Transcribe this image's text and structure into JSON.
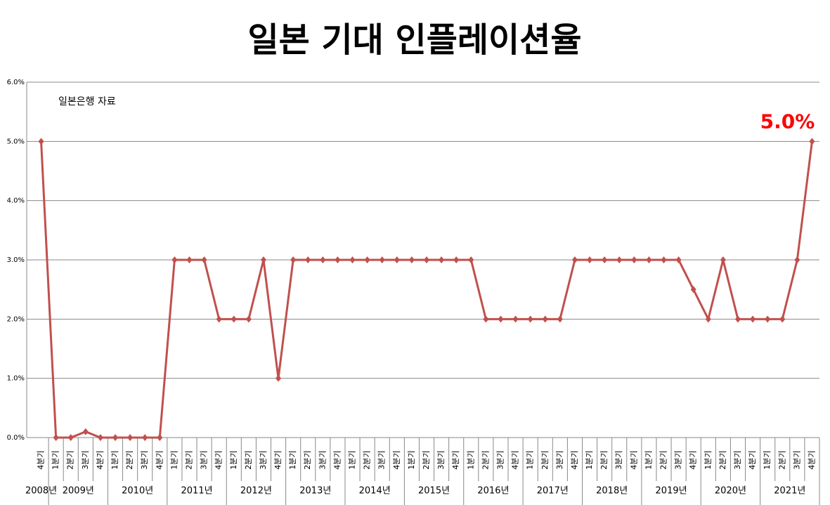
{
  "chart_data": {
    "type": "line",
    "title": "일본 기대 인플레이션율",
    "annotation": "일본은행 자료",
    "years": [
      "2008년",
      "2009년",
      "2010년",
      "2011년",
      "2012년",
      "2013년",
      "2014년",
      "2015년",
      "2016년",
      "2017년",
      "2018년",
      "2019년",
      "2020년",
      "2021년"
    ],
    "quarters": [
      [
        "4분기"
      ],
      [
        "1분기",
        "2분기",
        "3분기",
        "4분기"
      ],
      [
        "1분기",
        "2분기",
        "3분기",
        "4분기"
      ],
      [
        "1분기",
        "2분기",
        "3분기",
        "4분기"
      ],
      [
        "1분기",
        "2분기",
        "3분기",
        "4분기"
      ],
      [
        "1분기",
        "2분기",
        "3분기",
        "4분기"
      ],
      [
        "1분기",
        "2분기",
        "3분기",
        "4분기"
      ],
      [
        "1분기",
        "2분기",
        "3분기",
        "4분기"
      ],
      [
        "1분기",
        "2분기",
        "3분기",
        "4분기"
      ],
      [
        "1분기",
        "2분기",
        "3분기",
        "4분기"
      ],
      [
        "1분기",
        "2분기",
        "3분기",
        "4분기"
      ],
      [
        "1분기",
        "2분기",
        "3분기",
        "4분기"
      ],
      [
        "1분기",
        "2분기",
        "3분기",
        "4분기"
      ],
      [
        "1분기",
        "2분기",
        "3분기",
        "4분기"
      ]
    ],
    "values": [
      5,
      0,
      0,
      0.1,
      0,
      0,
      0,
      0,
      0,
      3,
      3,
      3,
      2,
      2,
      2,
      3,
      1,
      3,
      3,
      3,
      3,
      3,
      3,
      3,
      3,
      3,
      3,
      3,
      3,
      3,
      2,
      2,
      2,
      2,
      2,
      2,
      3,
      3,
      3,
      3,
      3,
      3,
      3,
      3,
      2.5,
      2,
      3,
      2,
      2,
      2,
      2,
      3,
      5
    ],
    "value_labels": [
      null,
      null,
      null,
      null,
      null,
      null,
      null,
      null,
      null,
      null,
      null,
      null,
      null,
      null,
      null,
      null,
      null,
      null,
      null,
      null,
      null,
      null,
      null,
      null,
      null,
      null,
      null,
      null,
      null,
      null,
      null,
      null,
      null,
      null,
      null,
      null,
      null,
      null,
      null,
      null,
      null,
      null,
      null,
      null,
      null,
      null,
      null,
      null,
      null,
      null,
      null,
      null,
      "5.0%"
    ],
    "color": "#c0504d",
    "label_color": "#ff0000",
    "ylim": [
      0,
      6
    ],
    "yticks": [
      {
        "value": 0,
        "label": "0.0%"
      },
      {
        "value": 1,
        "label": "1.0%"
      },
      {
        "value": 2,
        "label": "2.0%"
      },
      {
        "value": 3,
        "label": "3.0%"
      },
      {
        "value": 4,
        "label": "4.0%"
      },
      {
        "value": 5,
        "label": "5.0%"
      },
      {
        "value": 6,
        "label": "6.0%"
      }
    ],
    "grid": true
  }
}
